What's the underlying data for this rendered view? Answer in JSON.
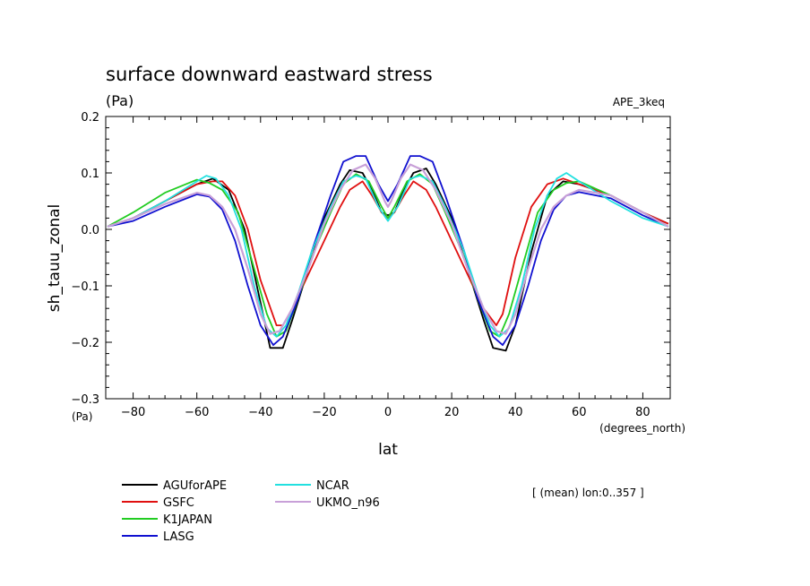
{
  "chart_data": {
    "type": "line",
    "title": "surface downward eastward stress",
    "units_label": "(Pa)",
    "run_label": "APE_3keq",
    "ylabel": "sh_tauu_zonal",
    "xlabel": "lat",
    "y_unit_label": "(Pa)",
    "x_unit_label": "(degrees_north)",
    "mean_note": "[ (mean) lon:0..357 ]",
    "xlim": [
      -88.6,
      88.6
    ],
    "ylim": [
      -0.3,
      0.2
    ],
    "x_ticks": [
      -80,
      -60,
      -40,
      -20,
      0,
      20,
      40,
      60,
      80
    ],
    "x_tick_labels": [
      "−80",
      "−60",
      "−40",
      "−20",
      "0",
      "20",
      "40",
      "60",
      "80"
    ],
    "y_ticks": [
      -0.3,
      -0.2,
      -0.1,
      0.0,
      0.1,
      0.2
    ],
    "y_tick_labels": [
      "−0.3",
      "−0.2",
      "−0.1",
      "0.0",
      "0.1",
      "0.2"
    ],
    "grid": false,
    "legend_position": "below-left",
    "series": [
      {
        "name": "AGUforAPE",
        "color": "#000000",
        "x": [
          -88,
          -80,
          -70,
          -60,
          -55,
          -50,
          -45,
          -40,
          -37,
          -33,
          -30,
          -25,
          -20,
          -15,
          -12,
          -8,
          -5,
          -2,
          0,
          2,
          5,
          8,
          12,
          15,
          20,
          25,
          30,
          33,
          37,
          40,
          45,
          50,
          55,
          60,
          70,
          80,
          88
        ],
        "y": [
          0.005,
          0.02,
          0.05,
          0.08,
          0.09,
          0.07,
          0.0,
          -0.13,
          -0.21,
          -0.21,
          -0.16,
          -0.07,
          0.02,
          0.08,
          0.105,
          0.1,
          0.07,
          0.03,
          0.025,
          0.03,
          0.07,
          0.1,
          0.108,
          0.08,
          0.02,
          -0.07,
          -0.16,
          -0.21,
          -0.215,
          -0.17,
          -0.04,
          0.06,
          0.085,
          0.08,
          0.06,
          0.03,
          0.01
        ]
      },
      {
        "name": "GSFC",
        "color": "#e01010",
        "x": [
          -88,
          -80,
          -70,
          -60,
          -55,
          -52,
          -48,
          -44,
          -40,
          -35,
          -33,
          -30,
          -25,
          -20,
          -15,
          -12,
          -8,
          -5,
          -2,
          0,
          2,
          5,
          8,
          12,
          15,
          20,
          25,
          30,
          34,
          36,
          40,
          45,
          50,
          55,
          60,
          70,
          80,
          88
        ],
        "y": [
          0.005,
          0.02,
          0.05,
          0.08,
          0.085,
          0.085,
          0.06,
          0.0,
          -0.09,
          -0.17,
          -0.17,
          -0.14,
          -0.08,
          -0.02,
          0.04,
          0.07,
          0.085,
          0.06,
          0.03,
          0.02,
          0.03,
          0.06,
          0.085,
          0.07,
          0.04,
          -0.02,
          -0.08,
          -0.14,
          -0.17,
          -0.15,
          -0.05,
          0.04,
          0.08,
          0.09,
          0.08,
          0.06,
          0.03,
          0.01
        ]
      },
      {
        "name": "K1JAPAN",
        "color": "#22cc22",
        "x": [
          -88,
          -80,
          -70,
          -60,
          -56,
          -52,
          -47,
          -42,
          -38,
          -35,
          -32,
          -28,
          -24,
          -18,
          -14,
          -10,
          -6,
          -2,
          0,
          2,
          6,
          10,
          14,
          18,
          24,
          28,
          32,
          35,
          38,
          42,
          47,
          52,
          56,
          60,
          70,
          80,
          88
        ],
        "y": [
          0.005,
          0.03,
          0.065,
          0.088,
          0.082,
          0.07,
          0.03,
          -0.07,
          -0.15,
          -0.19,
          -0.18,
          -0.12,
          -0.05,
          0.03,
          0.08,
          0.098,
          0.085,
          0.04,
          0.02,
          0.04,
          0.085,
          0.098,
          0.08,
          0.03,
          -0.05,
          -0.12,
          -0.18,
          -0.19,
          -0.15,
          -0.07,
          0.03,
          0.07,
          0.082,
          0.085,
          0.06,
          0.03,
          0.005
        ]
      },
      {
        "name": "LASG",
        "color": "#1010d0",
        "x": [
          -88,
          -80,
          -70,
          -60,
          -56,
          -52,
          -48,
          -44,
          -40,
          -36,
          -33,
          -28,
          -24,
          -18,
          -14,
          -10,
          -7,
          -3,
          0,
          3,
          7,
          10,
          14,
          18,
          24,
          28,
          33,
          36,
          40,
          44,
          48,
          52,
          56,
          60,
          70,
          80,
          88
        ],
        "y": [
          0.005,
          0.015,
          0.04,
          0.062,
          0.058,
          0.035,
          -0.02,
          -0.1,
          -0.17,
          -0.205,
          -0.19,
          -0.12,
          -0.04,
          0.06,
          0.12,
          0.13,
          0.13,
          0.08,
          0.05,
          0.08,
          0.13,
          0.13,
          0.12,
          0.06,
          -0.04,
          -0.12,
          -0.19,
          -0.205,
          -0.17,
          -0.1,
          -0.02,
          0.035,
          0.06,
          0.066,
          0.055,
          0.025,
          0.005
        ]
      },
      {
        "name": "NCAR",
        "color": "#22e0e0",
        "x": [
          -88,
          -80,
          -70,
          -60,
          -57,
          -54,
          -50,
          -46,
          -42,
          -38,
          -35,
          -32,
          -28,
          -24,
          -18,
          -14,
          -10,
          -7,
          -3,
          0,
          3,
          7,
          10,
          14,
          18,
          24,
          28,
          32,
          35,
          38,
          42,
          46,
          50,
          53,
          56,
          60,
          70,
          80,
          88
        ],
        "y": [
          0.005,
          0.02,
          0.05,
          0.085,
          0.095,
          0.09,
          0.06,
          0.0,
          -0.1,
          -0.175,
          -0.19,
          -0.17,
          -0.11,
          -0.04,
          0.04,
          0.085,
          0.095,
          0.09,
          0.04,
          0.015,
          0.04,
          0.09,
          0.095,
          0.085,
          0.04,
          -0.04,
          -0.11,
          -0.17,
          -0.19,
          -0.175,
          -0.1,
          0.0,
          0.06,
          0.09,
          0.1,
          0.085,
          0.05,
          0.02,
          0.005
        ]
      },
      {
        "name": "UKMO_n96",
        "color": "#c8a0d8",
        "x": [
          -88,
          -80,
          -70,
          -60,
          -56,
          -52,
          -48,
          -44,
          -40,
          -37,
          -34,
          -30,
          -25,
          -20,
          -15,
          -11,
          -7,
          -4,
          -1,
          0,
          1,
          4,
          7,
          11,
          15,
          20,
          25,
          30,
          34,
          37,
          40,
          44,
          48,
          52,
          56,
          60,
          70,
          80,
          88
        ],
        "y": [
          0.005,
          0.02,
          0.045,
          0.065,
          0.06,
          0.04,
          0.0,
          -0.07,
          -0.15,
          -0.185,
          -0.18,
          -0.14,
          -0.07,
          0.01,
          0.07,
          0.105,
          0.115,
          0.09,
          0.05,
          0.04,
          0.05,
          0.09,
          0.115,
          0.105,
          0.07,
          0.01,
          -0.07,
          -0.14,
          -0.18,
          -0.185,
          -0.15,
          -0.07,
          0.0,
          0.04,
          0.06,
          0.07,
          0.06,
          0.03,
          0.005
        ]
      }
    ]
  }
}
